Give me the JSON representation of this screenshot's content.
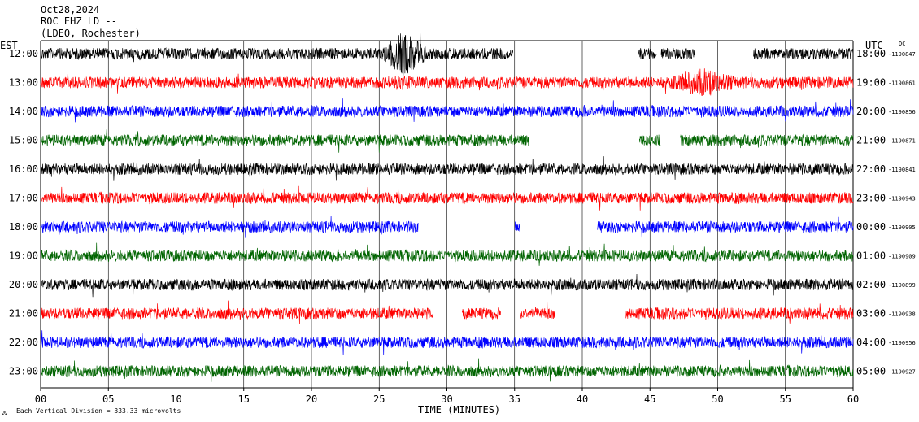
{
  "header": {
    "date": "Oct28,2024",
    "station": "ROC EHZ LD --",
    "network": "(LDEO, Rochester)"
  },
  "labels": {
    "left_zone": "EST",
    "right_zone": "UTC",
    "dc": "DC",
    "xlabel": "TIME (MINUTES)",
    "scale_note": "Each Vertical Division =  333.33 microvolts",
    "corner_mark": "⁂"
  },
  "colors": {
    "black": "#000000",
    "red": "#ff0000",
    "blue": "#0000ff",
    "green": "#006400",
    "grid": "#000000"
  },
  "chart_data": {
    "type": "line",
    "title": "ROC EHZ LD --",
    "xlabel": "TIME (MINUTES)",
    "xlim": [
      0,
      60
    ],
    "x_ticks": [
      "00",
      "05",
      "10",
      "15",
      "20",
      "25",
      "30",
      "35",
      "40",
      "45",
      "50",
      "55",
      "60"
    ],
    "series": [
      {
        "est": "12:00",
        "utc": "18:00",
        "dc": "-1190847",
        "color": "black",
        "gaps": [
          [
            34.9,
            44.1
          ],
          [
            45.5,
            45.8
          ],
          [
            48.3,
            52.6
          ]
        ],
        "events": [
          {
            "start": 25.2,
            "end": 28.6,
            "amp": 4.2
          }
        ]
      },
      {
        "est": "13:00",
        "utc": "19:00",
        "dc": "-1190861",
        "color": "red",
        "gaps": [],
        "events": [
          {
            "start": 46.5,
            "end": 51.5,
            "amp": 2.6
          },
          {
            "start": 25.5,
            "end": 27.5,
            "amp": 1.4
          }
        ]
      },
      {
        "est": "14:00",
        "utc": "20:00",
        "dc": "-1190856",
        "color": "blue",
        "gaps": [],
        "events": []
      },
      {
        "est": "15:00",
        "utc": "21:00",
        "dc": "-1190871",
        "color": "green",
        "gaps": [
          [
            36.1,
            44.2
          ],
          [
            45.8,
            47.2
          ]
        ],
        "events": []
      },
      {
        "est": "16:00",
        "utc": "22:00",
        "dc": "-1190841",
        "color": "black",
        "gaps": [],
        "events": []
      },
      {
        "est": "17:00",
        "utc": "23:00",
        "dc": "-1190943",
        "color": "red",
        "gaps": [],
        "events": []
      },
      {
        "est": "18:00",
        "utc": "00:00",
        "dc": "-1190905",
        "color": "blue",
        "gaps": [
          [
            27.9,
            35.0
          ],
          [
            35.4,
            41.1
          ]
        ],
        "events": []
      },
      {
        "est": "19:00",
        "utc": "01:00",
        "dc": "-1190909",
        "color": "green",
        "gaps": [],
        "events": []
      },
      {
        "est": "20:00",
        "utc": "02:00",
        "dc": "-1190899",
        "color": "black",
        "gaps": [],
        "events": []
      },
      {
        "est": "21:00",
        "utc": "03:00",
        "dc": "-1190938",
        "color": "red",
        "gaps": [
          [
            29.0,
            31.1
          ],
          [
            34.0,
            35.4
          ],
          [
            38.0,
            43.2
          ]
        ],
        "events": []
      },
      {
        "est": "22:00",
        "utc": "04:00",
        "dc": "-1190956",
        "color": "blue",
        "gaps": [],
        "events": []
      },
      {
        "est": "23:00",
        "utc": "05:00",
        "dc": "-1190927",
        "color": "green",
        "gaps": [],
        "events": []
      }
    ]
  }
}
